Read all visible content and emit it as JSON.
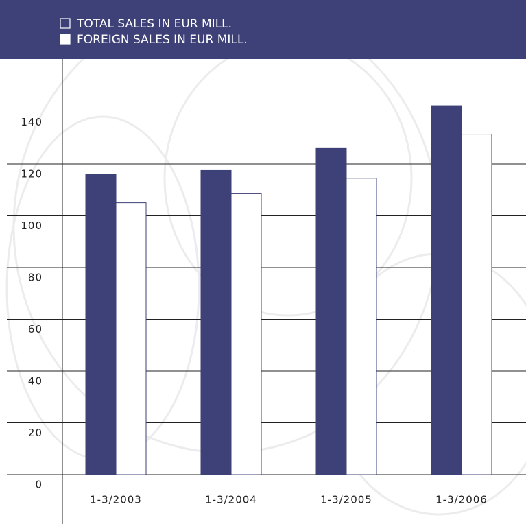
{
  "chart_data": {
    "type": "bar",
    "categories": [
      "1-3/2003",
      "1-3/2004",
      "1-3/2005",
      "1-3/2006"
    ],
    "series": [
      {
        "name": "TOTAL SALES IN EUR MILL.",
        "color": "#3d4177",
        "values": [
          116,
          117.5,
          126,
          142.5
        ]
      },
      {
        "name": "FOREIGN SALES IN EUR MILL.",
        "color": "#ffffff",
        "values": [
          105,
          108.5,
          114.5,
          131.5
        ]
      }
    ],
    "ylim": [
      0,
      160
    ],
    "yticks": [
      0,
      20,
      40,
      60,
      80,
      100,
      120,
      140
    ],
    "grid": true
  }
}
